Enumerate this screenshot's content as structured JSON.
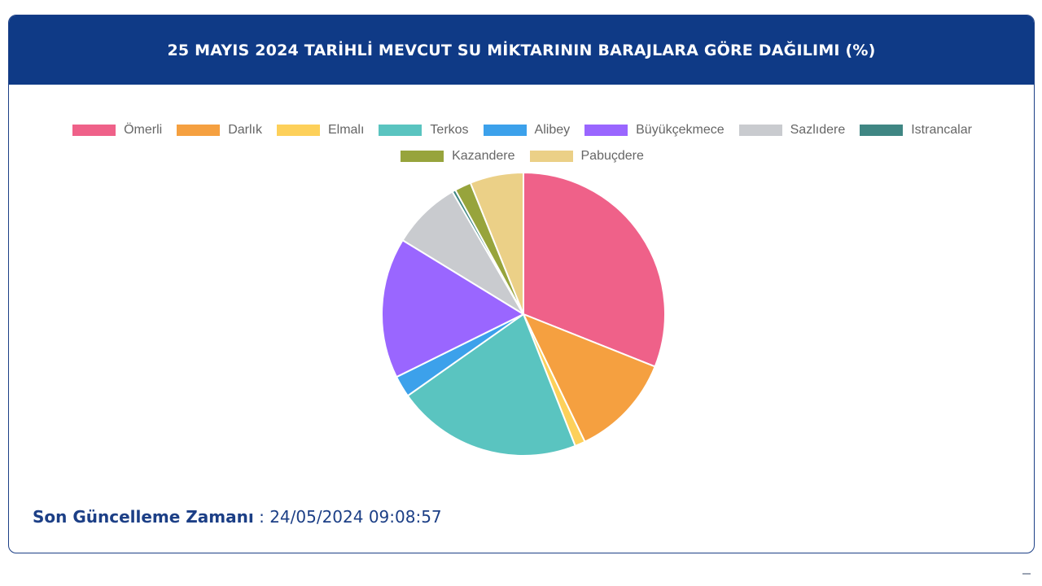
{
  "header": {
    "title": "25 MAYIS 2024 TARİHLİ MEVCUT SU MİKTARININ BARAJLARA GÖRE DAĞILIMI (%)"
  },
  "footer": {
    "label": "Son Güncelleme Zamanı",
    "separator": " : ",
    "value": "24/05/2024 09:08:57"
  },
  "chart_data": {
    "type": "pie",
    "title": "25 MAYIS 2024 TARİHLİ MEVCUT SU MİKTARININ BARAJLARA GÖRE DAĞILIMI (%)",
    "legend_position": "top",
    "categories": [
      "Ömerli",
      "Darlık",
      "Elmalı",
      "Terkos",
      "Alibey",
      "Büyükçekmece",
      "Sazlıdere",
      "Istrancalar",
      "Kazandere",
      "Pabuçdere"
    ],
    "values": [
      31.5,
      12.0,
      1.2,
      21.5,
      2.5,
      16.3,
      8.0,
      0.4,
      1.9,
      6.2
    ],
    "colors": [
      "#ef6189",
      "#f5a040",
      "#fdd05a",
      "#5ac4c0",
      "#3ca1eb",
      "#9a66ff",
      "#c9cbcf",
      "#3f8683",
      "#97a43c",
      "#ebd087"
    ]
  }
}
